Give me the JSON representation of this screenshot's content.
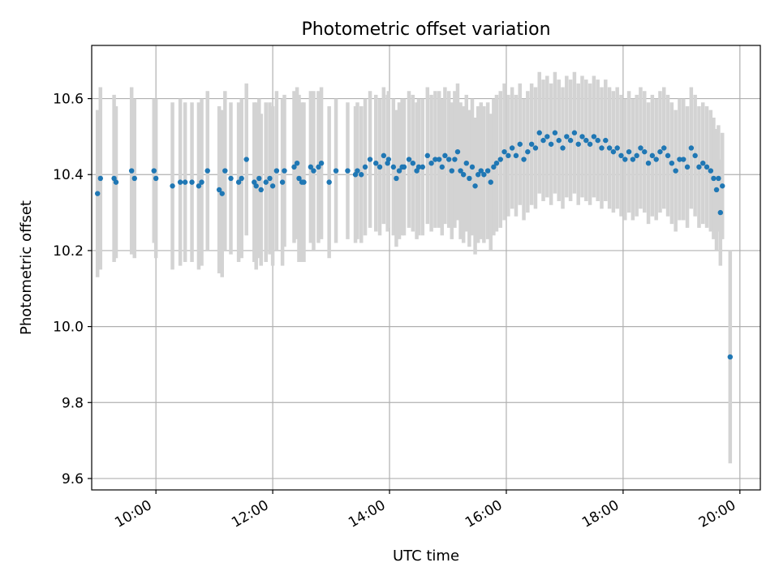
{
  "chart_data": {
    "type": "scatter",
    "title": "Photometric offset variation",
    "xlabel": "UTC time",
    "ylabel": "Photometric offset",
    "xlim": [
      "08:54",
      "20:21"
    ],
    "ylim": [
      9.57,
      10.74
    ],
    "x_ticks": [
      "10:00",
      "12:00",
      "14:00",
      "16:00",
      "18:00",
      "20:00"
    ],
    "y_ticks": [
      9.6,
      9.8,
      10.0,
      10.2,
      10.4,
      10.6
    ],
    "grid": true,
    "point_color": "#1f77b4",
    "errorbar_color": "#d3d3d3",
    "series": [
      {
        "x": [
          "09:00",
          "09:03",
          "09:17",
          "09:19",
          "09:35",
          "09:38",
          "09:58",
          "10:00",
          "10:17",
          "10:25",
          "10:30",
          "10:37",
          "10:44",
          "10:47",
          "10:53",
          "11:05",
          "11:08",
          "11:11",
          "11:17",
          "11:25",
          "11:28",
          "11:33",
          "11:41",
          "11:43",
          "11:46",
          "11:48",
          "11:53",
          "11:57",
          "12:00",
          "12:04",
          "12:10",
          "12:12",
          "12:22",
          "12:25",
          "12:27",
          "12:30",
          "12:32",
          "12:39",
          "12:42",
          "12:47",
          "12:50",
          "12:58",
          "13:05",
          "13:17",
          "13:25",
          "13:27",
          "13:31",
          "13:35",
          "13:40",
          "13:46",
          "13:50",
          "13:54",
          "13:58",
          "13:59",
          "14:04",
          "14:07",
          "14:10",
          "14:13",
          "14:15",
          "14:20",
          "14:24",
          "14:28",
          "14:30",
          "14:34",
          "14:39",
          "14:43",
          "14:47",
          "14:51",
          "14:54",
          "14:57",
          "15:01",
          "15:04",
          "15:07",
          "15:10",
          "15:13",
          "15:16",
          "15:19",
          "15:22",
          "15:25",
          "15:28",
          "15:31",
          "15:34",
          "15:37",
          "15:41",
          "15:44",
          "15:47",
          "15:50",
          "15:54",
          "15:58",
          "16:02",
          "16:06",
          "16:10",
          "16:14",
          "16:18",
          "16:22",
          "16:26",
          "16:30",
          "16:34",
          "16:38",
          "16:42",
          "16:46",
          "16:50",
          "16:54",
          "16:58",
          "17:02",
          "17:06",
          "17:10",
          "17:14",
          "17:18",
          "17:22",
          "17:26",
          "17:30",
          "17:34",
          "17:38",
          "17:42",
          "17:46",
          "17:50",
          "17:54",
          "17:58",
          "18:02",
          "18:06",
          "18:10",
          "18:14",
          "18:18",
          "18:22",
          "18:26",
          "18:30",
          "18:34",
          "18:38",
          "18:42",
          "18:46",
          "18:50",
          "18:54",
          "18:58",
          "19:02",
          "19:06",
          "19:10",
          "19:14",
          "19:18",
          "19:22",
          "19:26",
          "19:30",
          "19:33",
          "19:36",
          "19:38",
          "19:40",
          "19:42",
          "19:50"
        ],
        "y": [
          10.35,
          10.39,
          10.39,
          10.38,
          10.41,
          10.39,
          10.41,
          10.39,
          10.37,
          10.38,
          10.38,
          10.38,
          10.37,
          10.38,
          10.41,
          10.36,
          10.35,
          10.41,
          10.39,
          10.38,
          10.39,
          10.44,
          10.38,
          10.37,
          10.39,
          10.36,
          10.38,
          10.39,
          10.37,
          10.41,
          10.38,
          10.41,
          10.42,
          10.43,
          10.39,
          10.38,
          10.38,
          10.42,
          10.41,
          10.42,
          10.43,
          10.38,
          10.41,
          10.41,
          10.4,
          10.41,
          10.4,
          10.42,
          10.44,
          10.43,
          10.42,
          10.45,
          10.43,
          10.44,
          10.42,
          10.39,
          10.41,
          10.42,
          10.42,
          10.44,
          10.43,
          10.41,
          10.42,
          10.42,
          10.45,
          10.43,
          10.44,
          10.44,
          10.42,
          10.45,
          10.44,
          10.41,
          10.44,
          10.46,
          10.41,
          10.4,
          10.43,
          10.39,
          10.42,
          10.37,
          10.4,
          10.41,
          10.4,
          10.41,
          10.38,
          10.42,
          10.43,
          10.44,
          10.46,
          10.45,
          10.47,
          10.45,
          10.48,
          10.44,
          10.46,
          10.48,
          10.47,
          10.51,
          10.49,
          10.5,
          10.48,
          10.51,
          10.49,
          10.47,
          10.5,
          10.49,
          10.51,
          10.48,
          10.5,
          10.49,
          10.48,
          10.5,
          10.49,
          10.47,
          10.49,
          10.47,
          10.46,
          10.47,
          10.45,
          10.44,
          10.46,
          10.44,
          10.45,
          10.47,
          10.46,
          10.43,
          10.45,
          10.44,
          10.46,
          10.47,
          10.45,
          10.43,
          10.41,
          10.44,
          10.44,
          10.42,
          10.47,
          10.45,
          10.42,
          10.43,
          10.42,
          10.41,
          10.39,
          10.36,
          10.39,
          10.3,
          10.37,
          9.92
        ],
        "yerr": [
          0.22,
          0.24,
          0.22,
          0.2,
          0.22,
          0.21,
          0.19,
          0.21,
          0.22,
          0.22,
          0.21,
          0.21,
          0.22,
          0.22,
          0.21,
          0.22,
          0.22,
          0.21,
          0.2,
          0.21,
          0.21,
          0.2,
          0.21,
          0.22,
          0.21,
          0.2,
          0.21,
          0.2,
          0.21,
          0.21,
          0.22,
          0.2,
          0.2,
          0.2,
          0.22,
          0.21,
          0.21,
          0.2,
          0.21,
          0.2,
          0.2,
          0.2,
          0.19,
          0.18,
          0.18,
          0.18,
          0.18,
          0.18,
          0.18,
          0.18,
          0.18,
          0.18,
          0.18,
          0.18,
          0.18,
          0.18,
          0.18,
          0.18,
          0.18,
          0.18,
          0.18,
          0.18,
          0.18,
          0.18,
          0.18,
          0.18,
          0.18,
          0.18,
          0.18,
          0.18,
          0.18,
          0.18,
          0.18,
          0.18,
          0.18,
          0.18,
          0.18,
          0.18,
          0.18,
          0.18,
          0.18,
          0.18,
          0.18,
          0.18,
          0.18,
          0.18,
          0.18,
          0.18,
          0.18,
          0.16,
          0.16,
          0.16,
          0.16,
          0.16,
          0.16,
          0.16,
          0.16,
          0.16,
          0.16,
          0.16,
          0.16,
          0.16,
          0.16,
          0.16,
          0.16,
          0.16,
          0.16,
          0.16,
          0.16,
          0.16,
          0.16,
          0.16,
          0.16,
          0.16,
          0.16,
          0.16,
          0.16,
          0.16,
          0.16,
          0.16,
          0.16,
          0.16,
          0.16,
          0.16,
          0.16,
          0.16,
          0.16,
          0.16,
          0.16,
          0.16,
          0.16,
          0.16,
          0.16,
          0.16,
          0.16,
          0.16,
          0.16,
          0.16,
          0.16,
          0.16,
          0.16,
          0.16,
          0.16,
          0.16,
          0.14,
          0.14,
          0.14,
          0.28
        ]
      }
    ]
  }
}
